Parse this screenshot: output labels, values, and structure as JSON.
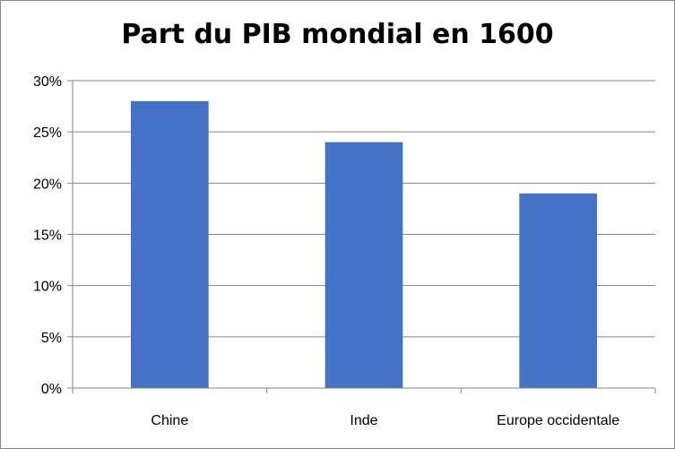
{
  "chart_data": {
    "type": "bar",
    "title": "Part du PIB mondial en 1600",
    "categories": [
      "Chine",
      "Inde",
      "Europe occidentale"
    ],
    "values": [
      28,
      24,
      19
    ],
    "value_unit": "%",
    "ylim": [
      0,
      30
    ],
    "yticks": [
      0,
      5,
      10,
      15,
      20,
      25,
      30
    ],
    "ytick_labels": [
      "0%",
      "5%",
      "10%",
      "15%",
      "20%",
      "25%",
      "30%"
    ],
    "grid": true,
    "legend": "none",
    "bar_color": "#4472C4",
    "grid_color": "#868686"
  }
}
